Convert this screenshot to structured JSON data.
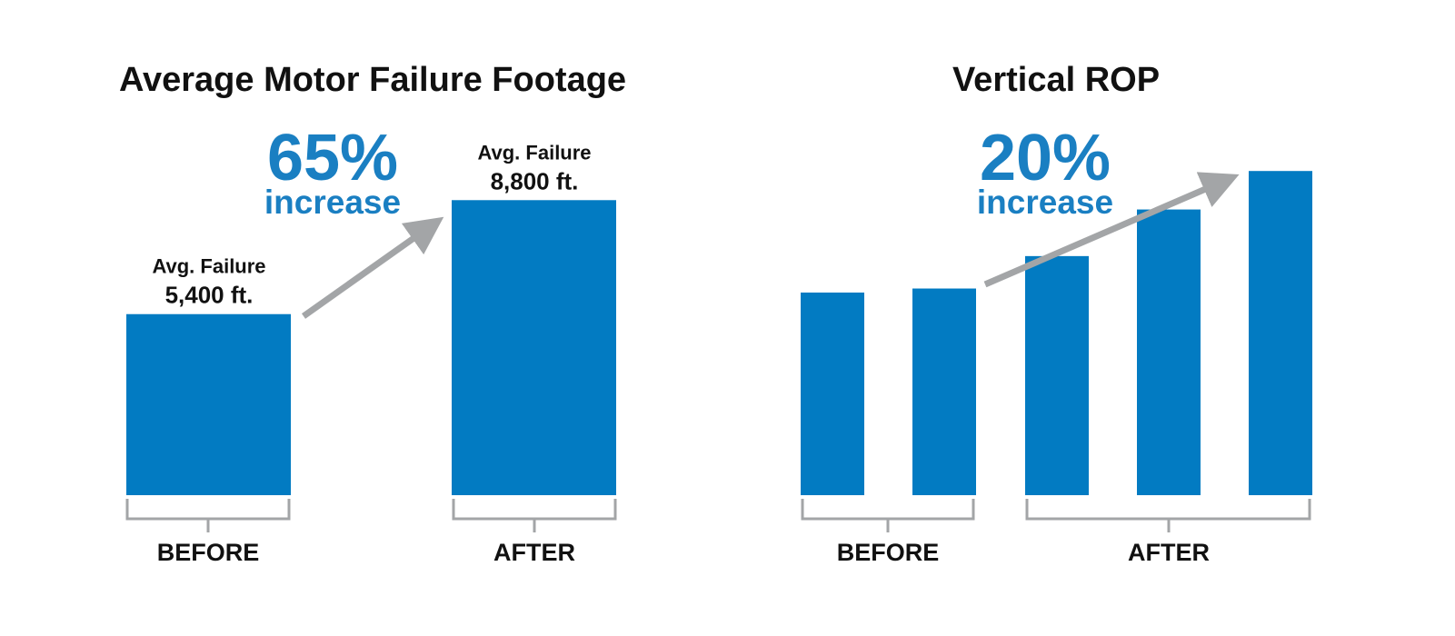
{
  "colors": {
    "bar": "#027BC2",
    "accent_text": "#1A7FC2",
    "arrow": "#A3A5A7",
    "bracket": "#A3A5A7",
    "text": "#111111"
  },
  "chart_data": [
    {
      "type": "bar",
      "title": "Average Motor Failure Footage",
      "categories": [
        "BEFORE",
        "AFTER"
      ],
      "values": [
        5400,
        8800
      ],
      "unit": "ft.",
      "bar_labels": [
        {
          "line1": "Avg. Failure",
          "line2": "5,400 ft."
        },
        {
          "line1": "Avg. Failure",
          "line2": "8,800 ft."
        }
      ],
      "groups": [
        {
          "label": "BEFORE",
          "bars": [
            0
          ]
        },
        {
          "label": "AFTER",
          "bars": [
            1
          ]
        }
      ],
      "callout": {
        "percent": "65%",
        "word": "increase"
      },
      "grid": false,
      "legend": "none"
    },
    {
      "type": "bar",
      "title": "Vertical ROP",
      "values": [
        100,
        102,
        118,
        141,
        160
      ],
      "groups": [
        {
          "label": "BEFORE",
          "bars": [
            0,
            1
          ]
        },
        {
          "label": "AFTER",
          "bars": [
            2,
            3,
            4
          ]
        }
      ],
      "callout": {
        "percent": "20%",
        "word": "increase"
      },
      "grid": false,
      "legend": "none"
    }
  ]
}
